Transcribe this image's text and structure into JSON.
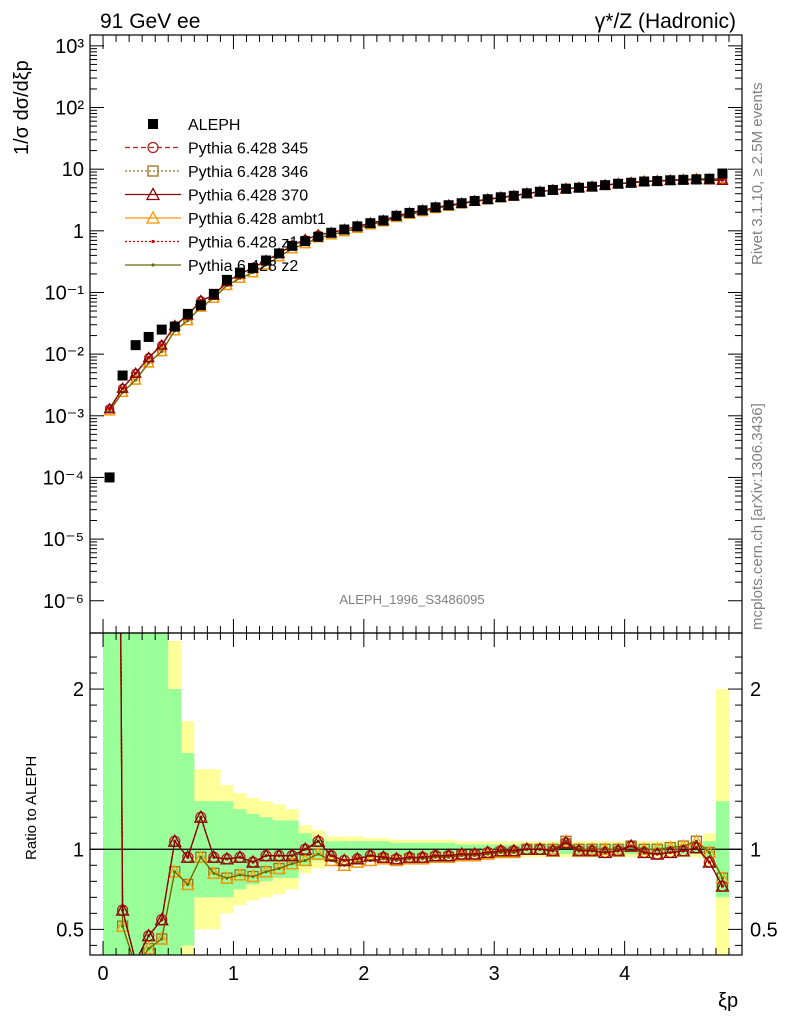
{
  "header": {
    "left_title": "91 GeV ee",
    "right_title": "γ*/Z (Hadronic)",
    "side_text_top": "Rivet 3.1.10, ≥ 2.5M events",
    "side_text_bottom": "mcplots.cern.ch [arXiv:1306.3436]",
    "analysis_id": "ALEPH_1996_S3486095"
  },
  "chart_data": [
    {
      "type": "scatter",
      "panel": "main",
      "ylabel": "1/σ dσ/dξp",
      "yscale": "log",
      "ylim": [
        3e-07,
        1500
      ],
      "xlim": [
        -0.1,
        4.9
      ],
      "ytick_labels": [
        "10⁻⁶",
        "10⁻⁵",
        "10⁻⁴",
        "10⁻³",
        "10⁻²",
        "10⁻¹",
        "1",
        "10",
        "10²",
        "10³"
      ],
      "legend_position": "upper-left",
      "data": {
        "name": "ALEPH",
        "x": [
          0.05,
          0.15,
          0.25,
          0.35,
          0.45,
          0.55,
          0.65,
          0.75,
          0.85,
          0.95,
          1.05,
          1.15,
          1.25,
          1.35,
          1.45,
          1.55,
          1.65,
          1.75,
          1.85,
          1.95,
          2.05,
          2.15,
          2.25,
          2.35,
          2.45,
          2.55,
          2.65,
          2.75,
          2.85,
          2.95,
          3.05,
          3.15,
          3.25,
          3.35,
          3.45,
          3.55,
          3.65,
          3.75,
          3.85,
          3.95,
          4.05,
          4.15,
          4.25,
          4.35,
          4.45,
          4.55,
          4.65,
          4.75
        ],
        "y": [
          0.0001,
          0.0045,
          0.014,
          0.019,
          0.025,
          0.028,
          0.045,
          0.062,
          0.095,
          0.16,
          0.21,
          0.25,
          0.33,
          0.43,
          0.57,
          0.68,
          0.8,
          0.93,
          1.05,
          1.18,
          1.33,
          1.47,
          1.75,
          1.95,
          2.15,
          2.4,
          2.6,
          2.8,
          3.05,
          3.25,
          3.5,
          3.7,
          4.05,
          4.3,
          4.6,
          4.8,
          5.0,
          5.2,
          5.5,
          5.8,
          6.0,
          6.3,
          6.4,
          6.6,
          6.7,
          6.8,
          7.0,
          8.5
        ]
      },
      "series": [
        {
          "name": "Pythia 6.428 345",
          "color": "#b22222",
          "marker": "circle-open",
          "line": "dashed"
        },
        {
          "name": "Pythia 6.428 346",
          "color": "#9c6e1e",
          "marker": "square-open",
          "line": "dotted"
        },
        {
          "name": "Pythia 6.428 370",
          "color": "#8b0000",
          "marker": "triangle-open",
          "line": "solid"
        },
        {
          "name": "Pythia 6.428 ambt1",
          "color": "#ff9900",
          "marker": "triangle-open",
          "line": "solid"
        },
        {
          "name": "Pythia 6.428 z1",
          "color": "#cc0000",
          "marker": "dot",
          "line": "dotted"
        },
        {
          "name": "Pythia 6.428 z2",
          "color": "#6b6b00",
          "marker": "dot",
          "line": "solid"
        }
      ],
      "mc_x": [
        0.05,
        0.15,
        0.25,
        0.35,
        0.45,
        0.55,
        0.65,
        0.75,
        0.85,
        0.95,
        1.05,
        1.15,
        1.25,
        1.35,
        1.45,
        1.55,
        1.65,
        1.75,
        1.85,
        1.95,
        2.05,
        2.15,
        2.25,
        2.35,
        2.45,
        2.55,
        2.65,
        2.75,
        2.85,
        2.95,
        3.05,
        3.15,
        3.25,
        3.35,
        3.45,
        3.55,
        3.65,
        3.75,
        3.85,
        3.95,
        4.05,
        4.15,
        4.25,
        4.35,
        4.45,
        4.55,
        4.65,
        4.75
      ],
      "mc_y_a": [
        0.0013,
        0.0028,
        0.0049,
        0.0088,
        0.014,
        0.029,
        0.043,
        0.074,
        0.09,
        0.15,
        0.2,
        0.25,
        0.33,
        0.43,
        0.58,
        0.72,
        0.86,
        0.93,
        1.05,
        1.18,
        1.33,
        1.47,
        1.75,
        1.95,
        2.15,
        2.4,
        2.6,
        2.8,
        3.05,
        3.25,
        3.5,
        3.7,
        4.05,
        4.3,
        4.6,
        4.8,
        5.0,
        5.2,
        5.5,
        5.8,
        6.0,
        6.3,
        6.4,
        6.6,
        6.7,
        6.8,
        6.7,
        6.6
      ],
      "mc_y_b": [
        0.0012,
        0.0024,
        0.0038,
        0.0072,
        0.011,
        0.024,
        0.035,
        0.058,
        0.081,
        0.13,
        0.17,
        0.21,
        0.28,
        0.38,
        0.51,
        0.62,
        0.77,
        0.86,
        0.97,
        1.1,
        1.25,
        1.4,
        1.65,
        1.85,
        2.05,
        2.3,
        2.5,
        2.75,
        3.0,
        3.2,
        3.45,
        3.65,
        4.0,
        4.3,
        4.6,
        4.9,
        5.0,
        5.2,
        5.5,
        5.8,
        6.1,
        6.4,
        6.5,
        6.6,
        6.8,
        7.0,
        6.9,
        7.0
      ]
    },
    {
      "type": "line",
      "panel": "ratio",
      "ylabel": "Ratio to ALEPH",
      "xlabel": "ξp",
      "ylim": [
        0.34,
        2.35
      ],
      "xlim": [
        -0.1,
        4.9
      ],
      "x_ticks": [
        0,
        1,
        2,
        3,
        4
      ],
      "y_ticks": [
        0.5,
        1,
        2
      ],
      "reference_line": 1,
      "bands": {
        "inner_color": "#99ff99",
        "outer_color": "#ffff99",
        "inner_halfwidth": [
          2.0,
          2.0,
          2.0,
          2.0,
          1.5,
          1.0,
          0.6,
          0.3,
          0.3,
          0.3,
          0.25,
          0.22,
          0.2,
          0.18,
          0.18,
          0.1,
          0.07,
          0.05,
          0.05,
          0.05,
          0.05,
          0.05,
          0.04,
          0.04,
          0.04,
          0.04,
          0.04,
          0.03,
          0.03,
          0.03,
          0.03,
          0.03,
          0.03,
          0.03,
          0.03,
          0.03,
          0.03,
          0.03,
          0.03,
          0.03,
          0.03,
          0.03,
          0.03,
          0.03,
          0.03,
          0.03,
          0.05,
          0.3
        ],
        "outer_halfwidth": [
          2.0,
          2.0,
          2.0,
          2.0,
          2.0,
          1.3,
          0.8,
          0.5,
          0.5,
          0.4,
          0.35,
          0.32,
          0.3,
          0.28,
          0.25,
          0.15,
          0.12,
          0.08,
          0.08,
          0.08,
          0.07,
          0.07,
          0.06,
          0.06,
          0.06,
          0.06,
          0.06,
          0.05,
          0.05,
          0.05,
          0.05,
          0.05,
          0.05,
          0.05,
          0.05,
          0.05,
          0.05,
          0.05,
          0.05,
          0.05,
          0.05,
          0.05,
          0.05,
          0.05,
          0.05,
          0.05,
          0.1,
          1.0
        ]
      },
      "ratio_a": [
        13.0,
        0.62,
        0.3,
        0.46,
        0.56,
        1.05,
        0.95,
        1.2,
        0.95,
        0.94,
        0.95,
        0.92,
        0.96,
        0.96,
        0.96,
        1.0,
        1.05,
        0.96,
        0.93,
        0.94,
        0.96,
        0.95,
        0.94,
        0.95,
        0.95,
        0.96,
        0.96,
        0.97,
        0.97,
        0.98,
        0.99,
        0.99,
        1.0,
        1.0,
        0.99,
        1.04,
        0.99,
        0.99,
        0.98,
        0.99,
        1.02,
        0.98,
        0.97,
        0.98,
        0.99,
        1.01,
        0.92,
        0.77
      ],
      "ratio_b": [
        13.0,
        0.52,
        0.27,
        0.38,
        0.44,
        0.86,
        0.78,
        0.95,
        0.85,
        0.82,
        0.84,
        0.83,
        0.86,
        0.88,
        0.91,
        0.93,
        0.97,
        0.93,
        0.9,
        0.92,
        0.93,
        0.94,
        0.93,
        0.94,
        0.94,
        0.95,
        0.95,
        0.96,
        0.96,
        0.97,
        0.98,
        0.98,
        1.0,
        1.0,
        1.0,
        1.05,
        1.0,
        1.0,
        1.0,
        1.0,
        1.02,
        1.0,
        1.0,
        1.01,
        1.02,
        1.05,
        0.98,
        0.82
      ]
    }
  ]
}
